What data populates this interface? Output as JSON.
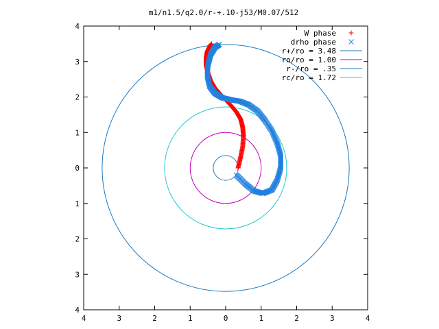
{
  "chart_data": {
    "type": "scatter",
    "title": "m1/n1.5/q2.0/r-+.10-j53/M0.07/512",
    "xlabel": "",
    "ylabel": "",
    "xlim": [
      -4,
      4
    ],
    "ylim": [
      -4,
      4
    ],
    "x_tick_labels": [
      "4",
      "3",
      "2",
      "1",
      "0",
      "1",
      "2",
      "3",
      "4"
    ],
    "y_tick_labels": [
      "4",
      "3",
      "2",
      "1",
      "0",
      "1",
      "2",
      "3",
      "4"
    ],
    "grid": false,
    "legend_position": "top-right",
    "series": [
      {
        "name": "W phase",
        "marker": "+",
        "color": "#ff0000",
        "x": [
          0.35,
          0.42,
          0.48,
          0.5,
          0.48,
          0.42,
          0.3,
          0.15,
          0.0,
          -0.15,
          -0.3,
          -0.42,
          -0.5,
          -0.55,
          -0.55,
          -0.52,
          -0.45,
          -0.4
        ],
        "y": [
          0.0,
          0.3,
          0.6,
          0.9,
          1.15,
          1.38,
          1.58,
          1.76,
          1.92,
          2.08,
          2.25,
          2.45,
          2.68,
          2.9,
          3.1,
          3.28,
          3.42,
          3.5
        ]
      },
      {
        "name": "drho phase",
        "marker": "x",
        "color": "#2080e0",
        "x": [
          0.3,
          0.55,
          0.8,
          1.05,
          1.3,
          1.45,
          1.55,
          1.55,
          1.45,
          1.3,
          1.1,
          0.9,
          0.65,
          0.4,
          0.15,
          -0.1,
          -0.3,
          -0.45,
          -0.52,
          -0.5,
          -0.42,
          -0.3,
          -0.18
        ],
        "y": [
          -0.2,
          -0.45,
          -0.65,
          -0.72,
          -0.62,
          -0.35,
          0.0,
          0.35,
          0.7,
          1.05,
          1.35,
          1.6,
          1.78,
          1.88,
          1.92,
          1.98,
          2.1,
          2.3,
          2.6,
          2.9,
          3.2,
          3.4,
          3.48
        ]
      },
      {
        "name": "r+/ro = 3.48",
        "type": "circle",
        "radius": 3.48,
        "color": "#1a78c2"
      },
      {
        "name": "ro/ro = 1.00",
        "type": "circle",
        "radius": 1.0,
        "color": "#c000c0"
      },
      {
        "name": "r-/ro = .35",
        "type": "circle",
        "radius": 0.35,
        "color": "#1a78c2"
      },
      {
        "name": "rc/ro = 1.72",
        "type": "circle",
        "radius": 1.72,
        "color": "#20c8d0"
      }
    ]
  }
}
